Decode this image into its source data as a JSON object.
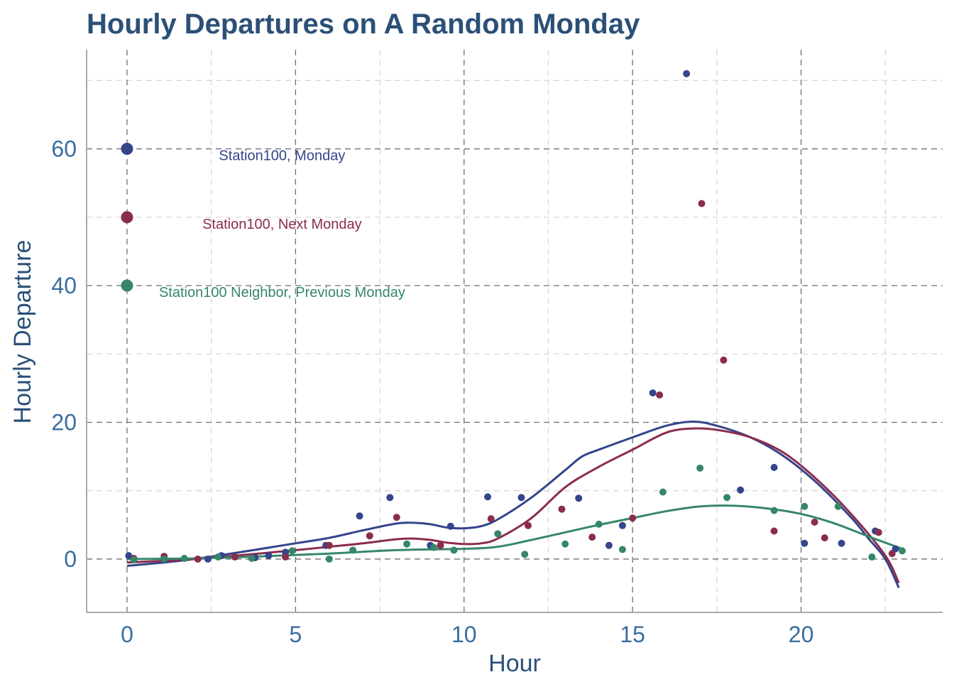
{
  "chart_data": {
    "type": "scatter",
    "title": "Hourly Departures on A Random Monday",
    "xlabel": "Hour",
    "ylabel": "Hourly Departure",
    "xlim": [
      -1.2,
      24.2
    ],
    "ylim": [
      -7.8,
      74.5
    ],
    "x_ticks": [
      0,
      5,
      10,
      15,
      20
    ],
    "y_ticks": [
      0,
      20,
      40,
      60
    ],
    "grid": "dashed major and minor",
    "legend": "inside top-left",
    "colors": {
      "title": "#2B5078",
      "axis_title": "#2B5078",
      "tick_label": "#3A6E9E",
      "grid_major": "#6F6F6F",
      "grid_minor": "#D8D8D8",
      "axis_line": "#AAAAAA"
    },
    "series": [
      {
        "name": "Station100, Monday",
        "color": "#34458C",
        "legend_value": 60,
        "points": [
          [
            0.05,
            0.5
          ],
          [
            2.4,
            0
          ],
          [
            2.8,
            0.5
          ],
          [
            3.8,
            0.2
          ],
          [
            4.2,
            0.5
          ],
          [
            4.7,
            1
          ],
          [
            5.9,
            2
          ],
          [
            6.9,
            6.3
          ],
          [
            7.8,
            9
          ],
          [
            9.0,
            2
          ],
          [
            9.6,
            4.8
          ],
          [
            10.7,
            9.1
          ],
          [
            11.7,
            9
          ],
          [
            13.4,
            8.9
          ],
          [
            14.3,
            2
          ],
          [
            14.7,
            4.9
          ],
          [
            15.6,
            24.3
          ],
          [
            16.6,
            71
          ],
          [
            18.2,
            10.1
          ],
          [
            19.2,
            13.4
          ],
          [
            20.1,
            2.3
          ],
          [
            21.2,
            2.3
          ],
          [
            22.2,
            4.1
          ],
          [
            22.8,
            1.5
          ]
        ],
        "smooth": [
          [
            0,
            -1
          ],
          [
            2,
            0
          ],
          [
            5,
            2.3
          ],
          [
            6,
            3.1
          ],
          [
            7,
            4.2
          ],
          [
            8,
            5.2
          ],
          [
            8.5,
            5.3
          ],
          [
            9,
            5.1
          ],
          [
            9.5,
            4.6
          ],
          [
            10,
            4.5
          ],
          [
            10.5,
            4.8
          ],
          [
            11,
            5.8
          ],
          [
            12,
            9
          ],
          [
            13,
            13
          ],
          [
            13.5,
            15
          ],
          [
            14,
            16
          ],
          [
            15,
            17.8
          ],
          [
            16,
            19.5
          ],
          [
            16.8,
            20.1
          ],
          [
            17.5,
            19.5
          ],
          [
            18.5,
            17.8
          ],
          [
            19.5,
            15
          ],
          [
            20.5,
            11
          ],
          [
            21.5,
            6
          ],
          [
            22,
            3
          ],
          [
            22.5,
            0
          ],
          [
            22.9,
            -4.2
          ]
        ]
      },
      {
        "name": "Station100, Next Monday",
        "color": "#8B2C4E",
        "legend_value": 50,
        "points": [
          [
            0.2,
            0.1
          ],
          [
            1.1,
            0.4
          ],
          [
            2.1,
            0
          ],
          [
            3.2,
            0.3
          ],
          [
            4.7,
            0.3
          ],
          [
            6.0,
            2
          ],
          [
            7.2,
            3.4
          ],
          [
            8.0,
            6.1
          ],
          [
            9.3,
            2
          ],
          [
            10.8,
            5.9
          ],
          [
            11.9,
            4.9
          ],
          [
            12.9,
            7.3
          ],
          [
            13.8,
            3.2
          ],
          [
            15.0,
            6
          ],
          [
            15.8,
            24
          ],
          [
            17.05,
            52
          ],
          [
            17.7,
            29.1
          ],
          [
            19.2,
            4.1
          ],
          [
            20.4,
            5.4
          ],
          [
            20.7,
            3.1
          ],
          [
            22.3,
            3.9
          ],
          [
            22.7,
            0.8
          ]
        ],
        "smooth": [
          [
            0,
            -0.5
          ],
          [
            2,
            0
          ],
          [
            5,
            1.3
          ],
          [
            6,
            1.8
          ],
          [
            7,
            2.3
          ],
          [
            8,
            2.9
          ],
          [
            8.5,
            3
          ],
          [
            9,
            2.8
          ],
          [
            9.5,
            2.4
          ],
          [
            10,
            2.2
          ],
          [
            10.5,
            2.3
          ],
          [
            11,
            3
          ],
          [
            12,
            6
          ],
          [
            13,
            10.5
          ],
          [
            14,
            13.5
          ],
          [
            15,
            16
          ],
          [
            16,
            18.5
          ],
          [
            16.8,
            19.1
          ],
          [
            17.5,
            18.9
          ],
          [
            18.5,
            17.8
          ],
          [
            19.5,
            15.5
          ],
          [
            20.5,
            11.5
          ],
          [
            21.5,
            6.5
          ],
          [
            22.5,
            0.5
          ],
          [
            22.9,
            -3.5
          ]
        ]
      },
      {
        "name": "Station100 Neighbor, Previous Monday",
        "color": "#36876A",
        "legend_value": 40,
        "points": [
          [
            0.2,
            -0.1
          ],
          [
            1.1,
            0
          ],
          [
            1.7,
            0.1
          ],
          [
            2.7,
            0.3
          ],
          [
            3.7,
            0.1
          ],
          [
            4.9,
            1.2
          ],
          [
            6.0,
            0
          ],
          [
            6.7,
            1.3
          ],
          [
            8.3,
            2.2
          ],
          [
            9.1,
            1.7
          ],
          [
            9.7,
            1.3
          ],
          [
            11.0,
            3.7
          ],
          [
            11.8,
            0.7
          ],
          [
            13.0,
            2.2
          ],
          [
            14.0,
            5.1
          ],
          [
            14.7,
            1.4
          ],
          [
            15.9,
            9.8
          ],
          [
            17.0,
            13.3
          ],
          [
            17.8,
            9
          ],
          [
            19.2,
            7.1
          ],
          [
            20.1,
            7.7
          ],
          [
            21.1,
            7.7
          ],
          [
            22.1,
            0.3
          ],
          [
            23.0,
            1.2
          ]
        ],
        "smooth": [
          [
            0,
            0
          ],
          [
            2,
            0.1
          ],
          [
            4,
            0.4
          ],
          [
            6,
            0.8
          ],
          [
            8,
            1.3
          ],
          [
            10,
            1.5
          ],
          [
            11,
            1.8
          ],
          [
            12,
            2.8
          ],
          [
            13,
            3.9
          ],
          [
            14,
            5
          ],
          [
            15,
            6
          ],
          [
            16,
            7
          ],
          [
            17,
            7.7
          ],
          [
            18,
            7.8
          ],
          [
            19,
            7.4
          ],
          [
            20,
            6.6
          ],
          [
            21,
            5.2
          ],
          [
            22,
            3.3
          ],
          [
            23,
            1.5
          ]
        ]
      }
    ]
  }
}
